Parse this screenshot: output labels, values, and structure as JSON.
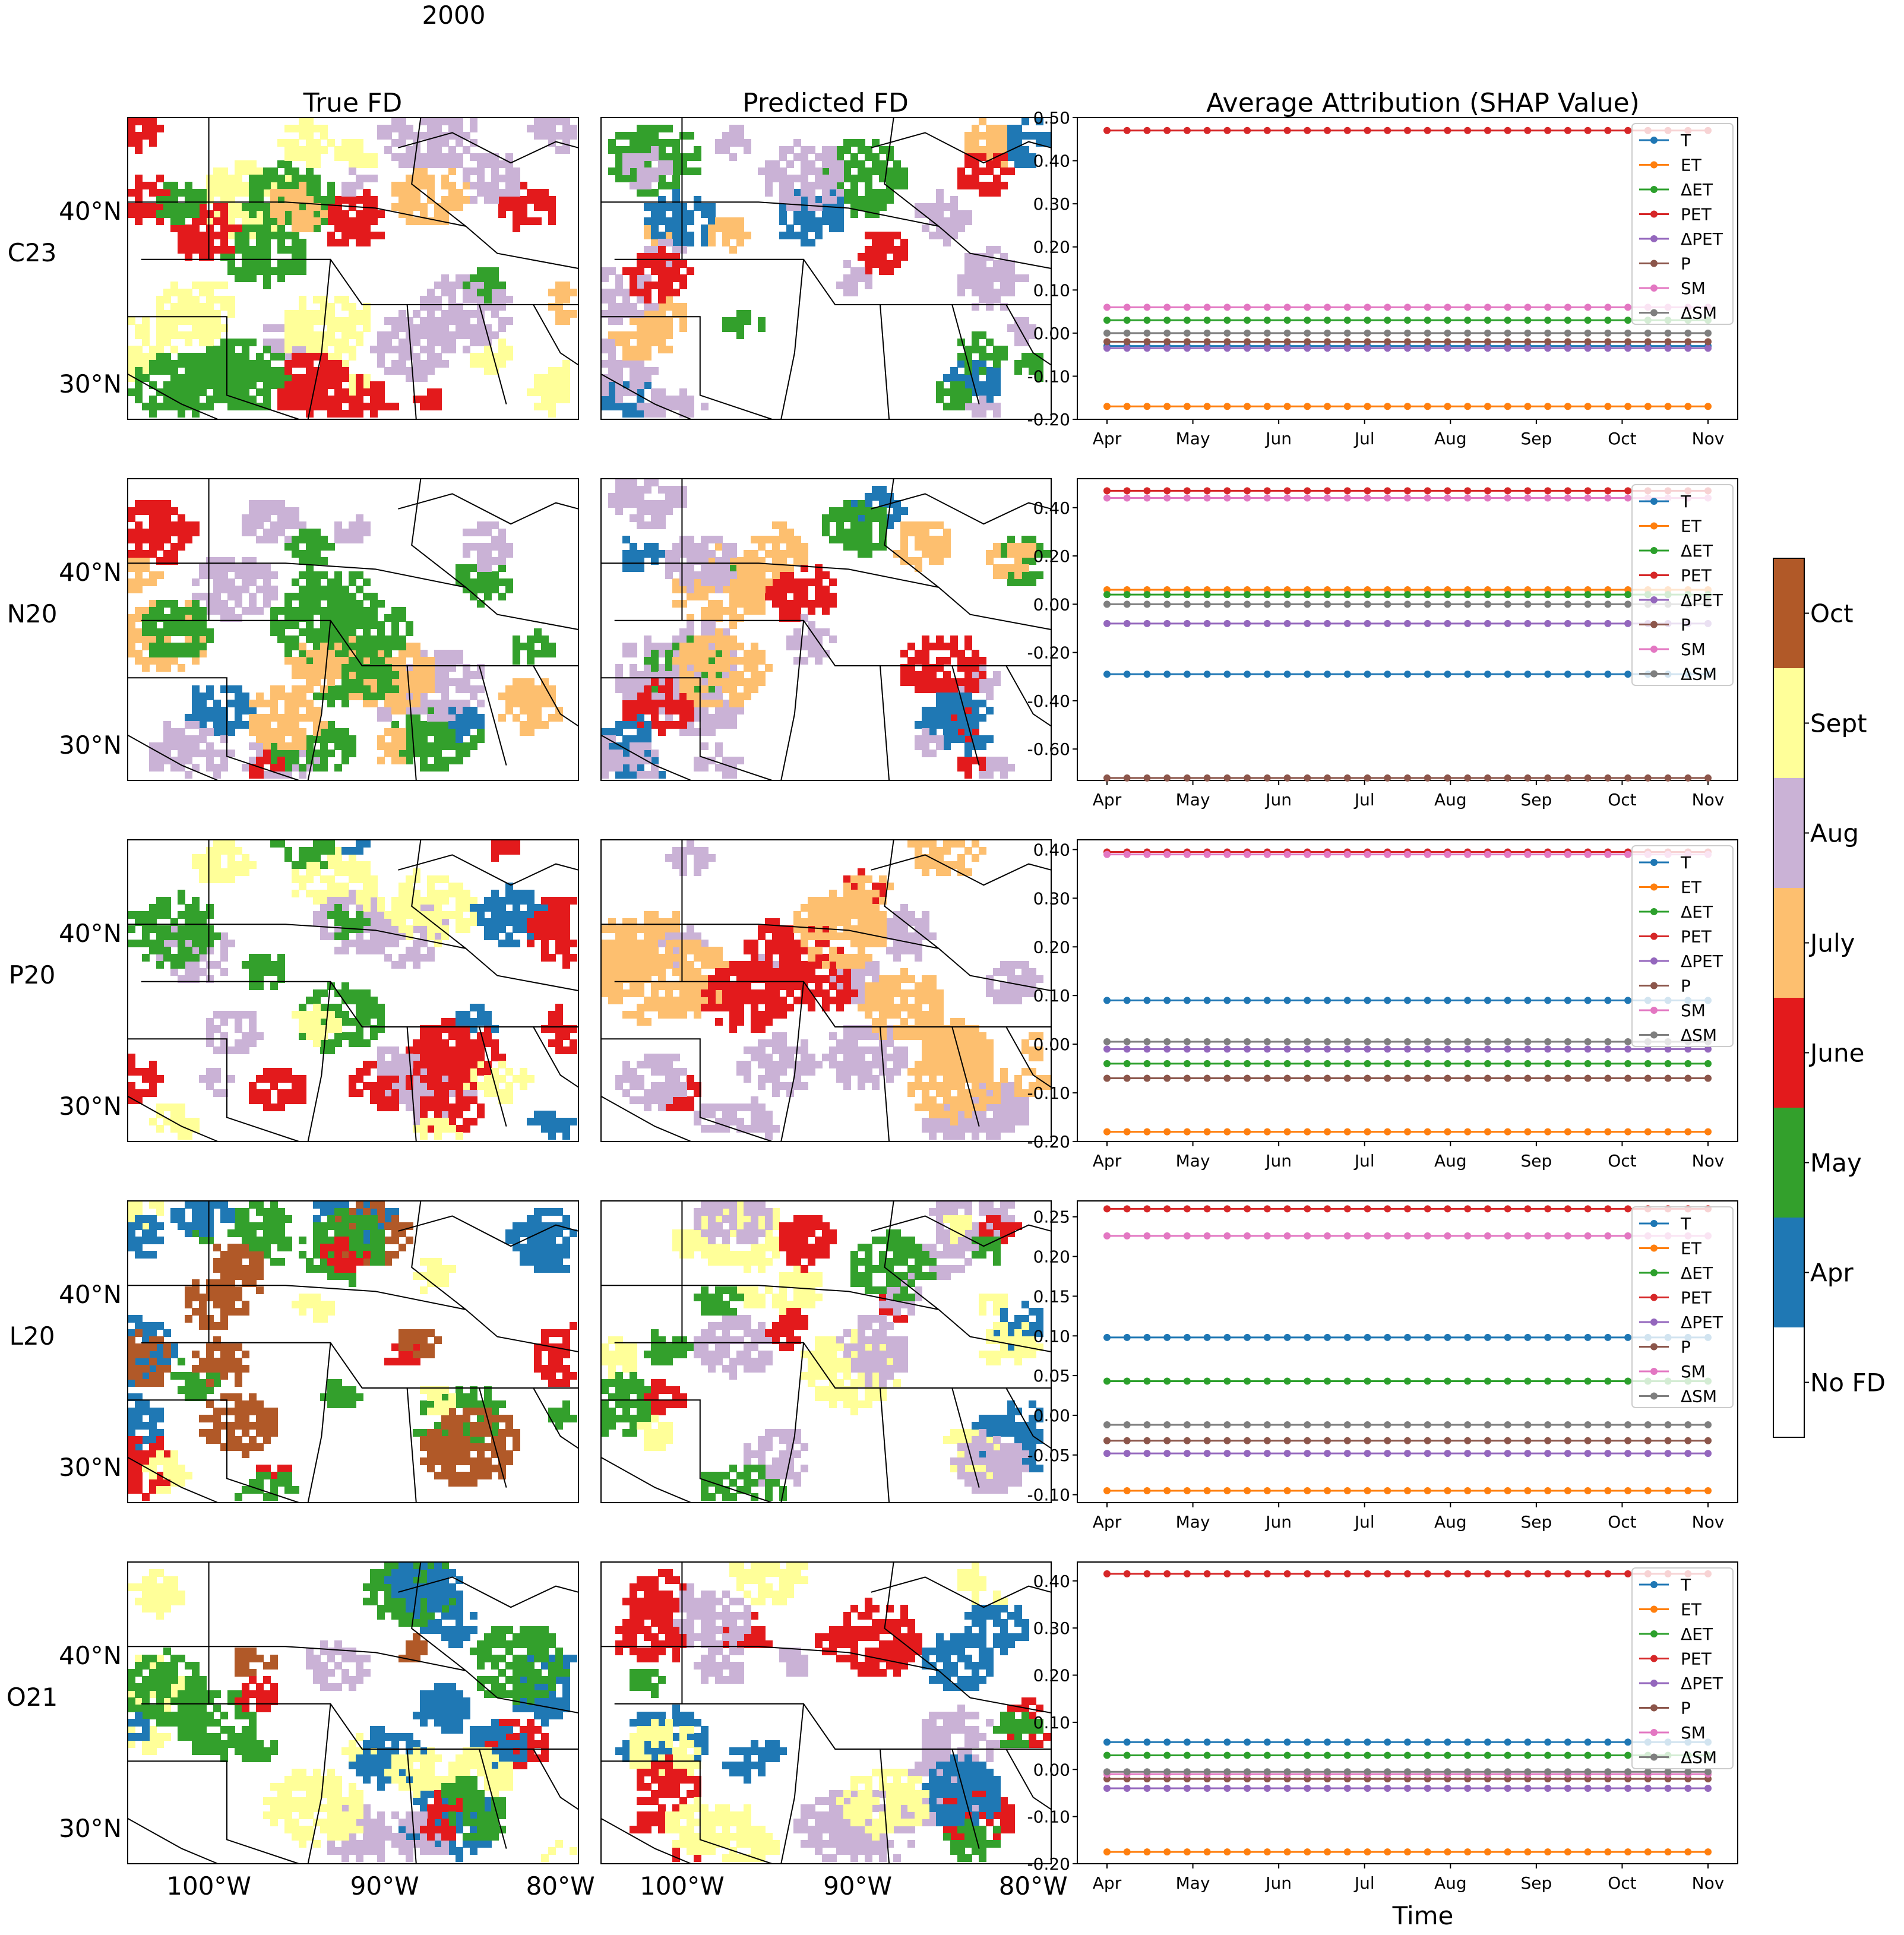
{
  "figure": {
    "suptitle": "2000",
    "col_titles": [
      "True FD",
      "Predicted FD",
      "Average Attribution (SHAP Value)"
    ],
    "row_labels": [
      "C23",
      "N20",
      "P20",
      "L20",
      "O21"
    ],
    "lat_ticks": [
      "40°N",
      "30°N"
    ],
    "lon_ticks": [
      "100°W",
      "90°W",
      "80°W"
    ],
    "time_label": "Time"
  },
  "colorbar": {
    "labels": [
      "No FD",
      "Apr",
      "May",
      "June",
      "July",
      "Aug",
      "Sept",
      "Oct"
    ],
    "colors": [
      "#ffffff",
      "#1f78b4",
      "#33a02c",
      "#e31a1c",
      "#fdbf6f",
      "#cab2d6",
      "#ffff99",
      "#b15928"
    ]
  },
  "map_style": {
    "land_outline_color": "#000000",
    "note": "Each map shows flash-drought onset month across central/eastern US (approx. 105°W–79°W, 27°N–45°N)",
    "dominant_classes": {
      "C23": {
        "true": [
          "Aug",
          "July",
          "May",
          "June",
          "Sept"
        ],
        "predicted": [
          "Aug",
          "June",
          "May",
          "Apr",
          "July"
        ]
      },
      "N20": {
        "true": [
          "May",
          "Aug",
          "Apr",
          "July",
          "June"
        ],
        "predicted": [
          "Aug",
          "May",
          "June",
          "July",
          "Apr"
        ]
      },
      "P20": {
        "true": [
          "Aug",
          "June",
          "Apr",
          "May",
          "Sept"
        ],
        "predicted": [
          "July",
          "June",
          "Aug"
        ]
      },
      "L20": {
        "true": [
          "May",
          "Oct",
          "Apr",
          "June",
          "Sept"
        ],
        "predicted": [
          "Aug",
          "Sept",
          "May",
          "June",
          "Apr"
        ]
      },
      "O21": {
        "true": [
          "Apr",
          "May",
          "Aug",
          "Oct",
          "June",
          "Sept"
        ],
        "predicted": [
          "Aug",
          "Sept",
          "June",
          "May",
          "Apr"
        ]
      }
    }
  },
  "chart_data": {
    "type": "line",
    "x_categories": [
      "Apr",
      "May",
      "Jun",
      "Jul",
      "Aug",
      "Sep",
      "Oct",
      "Nov"
    ],
    "points_per_series": 31,
    "legend": [
      "T",
      "ET",
      "ΔET",
      "PET",
      "ΔPET",
      "P",
      "SM",
      "ΔSM"
    ],
    "series_colors": [
      "#1f77b4",
      "#ff7f0e",
      "#2ca02c",
      "#d62728",
      "#9467bd",
      "#8c564b",
      "#e377c2",
      "#7f7f7f"
    ],
    "legend_position": "upper right",
    "panels": [
      {
        "row": "C23",
        "ylim": [
          -0.2,
          0.5
        ],
        "yticks": [
          "0.50",
          "0.40",
          "0.30",
          "0.20",
          "0.10",
          "0.00",
          "-0.10",
          "-0.20"
        ],
        "yvals": [
          0.5,
          0.4,
          0.3,
          0.2,
          0.1,
          0.0,
          -0.1,
          -0.2
        ],
        "values": {
          "T": -0.03,
          "ET": -0.17,
          "ΔET": 0.03,
          "PET": 0.47,
          "ΔPET": -0.035,
          "P": -0.02,
          "SM": 0.06,
          "ΔSM": 0.0
        }
      },
      {
        "row": "N20",
        "ylim": [
          -0.73,
          0.52
        ],
        "yticks": [
          "0.40",
          "0.20",
          "0.00",
          "-0.20",
          "-0.40",
          "-0.60"
        ],
        "yvals": [
          0.4,
          0.2,
          0.0,
          -0.2,
          -0.4,
          -0.6
        ],
        "values": {
          "T": -0.29,
          "ET": 0.06,
          "ΔET": 0.04,
          "PET": 0.47,
          "ΔPET": -0.08,
          "P": -0.72,
          "SM": 0.44,
          "ΔSM": 0.0
        }
      },
      {
        "row": "P20",
        "ylim": [
          -0.2,
          0.42
        ],
        "yticks": [
          "0.40",
          "0.30",
          "0.20",
          "0.10",
          "0.00",
          "-0.10",
          "-0.20"
        ],
        "yvals": [
          0.4,
          0.3,
          0.2,
          0.1,
          0.0,
          -0.1,
          -0.2
        ],
        "values": {
          "T": 0.09,
          "ET": -0.18,
          "ΔET": -0.04,
          "PET": 0.395,
          "ΔPET": -0.01,
          "P": -0.07,
          "SM": 0.39,
          "ΔSM": 0.005
        }
      },
      {
        "row": "L20",
        "ylim": [
          -0.11,
          0.27
        ],
        "yticks": [
          "0.25",
          "0.20",
          "0.15",
          "0.10",
          "0.05",
          "0.00",
          "-0.05",
          "-0.10"
        ],
        "yvals": [
          0.25,
          0.2,
          0.15,
          0.1,
          0.05,
          0.0,
          -0.05,
          -0.1
        ],
        "values": {
          "T": 0.098,
          "ET": -0.095,
          "ΔET": 0.043,
          "PET": 0.26,
          "ΔPET": -0.048,
          "P": -0.032,
          "SM": 0.226,
          "ΔSM": -0.012
        }
      },
      {
        "row": "O21",
        "ylim": [
          -0.2,
          0.44
        ],
        "yticks": [
          "0.40",
          "0.30",
          "0.20",
          "0.10",
          "0.00",
          "-0.10",
          "-0.20"
        ],
        "yvals": [
          0.4,
          0.3,
          0.2,
          0.1,
          0.0,
          -0.1,
          -0.2
        ],
        "values": {
          "T": 0.058,
          "ET": -0.175,
          "ΔET": 0.03,
          "PET": 0.415,
          "ΔPET": -0.04,
          "P": -0.02,
          "SM": -0.01,
          "ΔSM": -0.005
        }
      }
    ]
  }
}
